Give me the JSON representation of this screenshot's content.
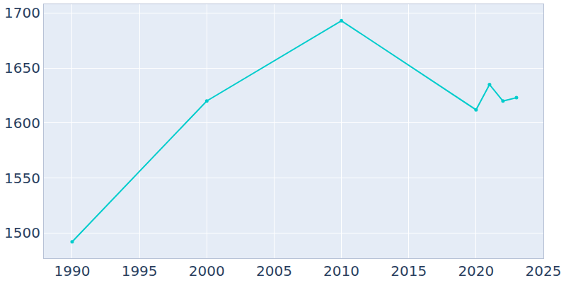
{
  "chart_data": {
    "type": "line",
    "x": [
      1990,
      2000,
      2010,
      2020,
      2021,
      2022,
      2023
    ],
    "values": [
      1492,
      1620,
      1693,
      1612,
      1635,
      1620,
      1623
    ],
    "color": "#00cccc",
    "marker": "circle",
    "xlim": [
      1987.9,
      2025
    ],
    "xticks": [
      1990,
      1995,
      2000,
      2005,
      2010,
      2015,
      2020,
      2025
    ],
    "ylim": [
      1477,
      1708
    ],
    "yticks": [
      1500,
      1550,
      1600,
      1650,
      1700
    ],
    "grid": true
  }
}
